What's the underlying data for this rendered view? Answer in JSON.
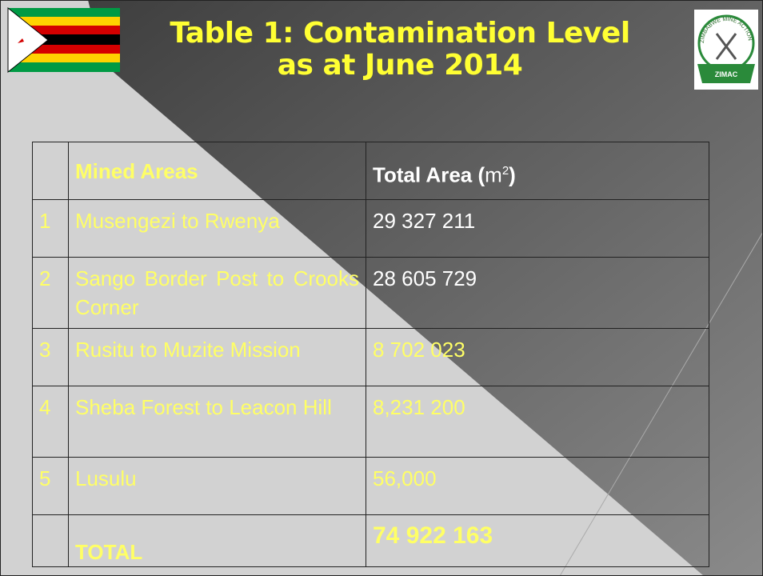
{
  "title": [
    "Table 1: Contamination Level",
    "as at June 2014"
  ],
  "logo": {
    "ring": "ZIMBABWE MINE ACTION CENTRE",
    "name": "ZIMAC"
  },
  "table": {
    "header": [
      "",
      "Mined Areas",
      {
        "text": "Total Area (",
        "unit": "m",
        "sup": "2",
        "close": ")"
      }
    ],
    "rows": [
      [
        "1",
        "Musengezi to Rwenya",
        "29 327 211"
      ],
      [
        "2",
        "Sango Border Post to Crooks Corner",
        "28 605 729"
      ],
      [
        "3",
        "Rusitu to Muzite Mission",
        "8 702 023"
      ],
      [
        "4",
        "Sheba Forest to Leacon Hill",
        "8,231 200"
      ],
      [
        "5",
        "Lusulu",
        "56,000"
      ],
      [
        "",
        "TOTAL",
        "74 922 163"
      ]
    ]
  }
}
